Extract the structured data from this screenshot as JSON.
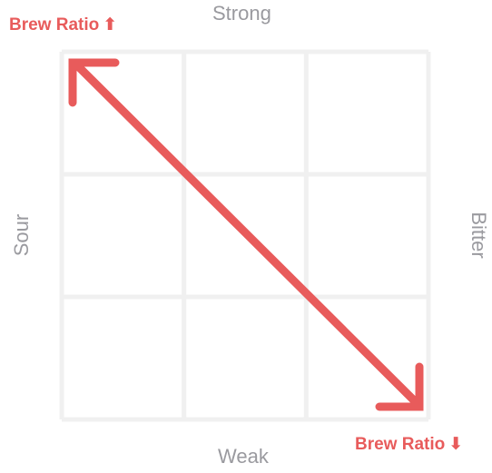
{
  "axes": {
    "top": "Strong",
    "bottom": "Weak",
    "left": "Sour",
    "right": "Bitter"
  },
  "annotations": {
    "top_left": {
      "label": "Brew Ratio",
      "arrow": "⬆"
    },
    "bottom_right": {
      "label": "Brew Ratio",
      "arrow": "⬇"
    }
  },
  "grid": {
    "rows": 3,
    "cols": 3
  },
  "colors": {
    "accent": "#e85b5b",
    "grid": "#f0f0f0",
    "label": "#9a9a9f"
  }
}
